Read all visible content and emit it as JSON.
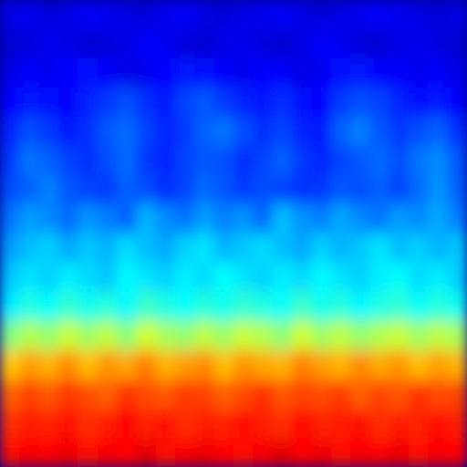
{
  "chart_data": {
    "type": "heatmap",
    "color": "jet",
    "zlim": [
      0,
      1
    ],
    "tick_labels": false,
    "cells": [
      [
        0.1,
        0.11,
        0.09,
        0.1,
        0.12,
        0.11,
        0.1,
        0.09,
        0.11,
        0.12,
        0.1,
        0.09,
        0.1,
        0.11,
        0.12,
        0.1,
        0.09,
        0.1,
        0.11,
        0.12,
        0.11,
        0.1,
        0.09,
        0.1
      ],
      [
        0.08,
        0.09,
        0.11,
        0.1,
        0.08,
        0.09,
        0.1,
        0.12,
        0.11,
        0.09,
        0.08,
        0.1,
        0.11,
        0.09,
        0.08,
        0.1,
        0.12,
        0.11,
        0.09,
        0.08,
        0.1,
        0.11,
        0.09,
        0.08
      ],
      [
        0.1,
        0.12,
        0.11,
        0.13,
        0.14,
        0.12,
        0.1,
        0.11,
        0.13,
        0.15,
        0.14,
        0.12,
        0.11,
        0.13,
        0.12,
        0.1,
        0.11,
        0.14,
        0.15,
        0.13,
        0.12,
        0.11,
        0.12,
        0.1
      ],
      [
        0.13,
        0.15,
        0.14,
        0.12,
        0.16,
        0.18,
        0.2,
        0.17,
        0.15,
        0.19,
        0.21,
        0.18,
        0.16,
        0.15,
        0.17,
        0.14,
        0.13,
        0.18,
        0.2,
        0.19,
        0.16,
        0.14,
        0.15,
        0.13
      ],
      [
        0.16,
        0.2,
        0.18,
        0.15,
        0.17,
        0.21,
        0.23,
        0.19,
        0.16,
        0.18,
        0.22,
        0.24,
        0.2,
        0.17,
        0.19,
        0.16,
        0.15,
        0.22,
        0.25,
        0.21,
        0.18,
        0.2,
        0.22,
        0.17
      ],
      [
        0.18,
        0.24,
        0.22,
        0.19,
        0.17,
        0.2,
        0.23,
        0.18,
        0.16,
        0.19,
        0.21,
        0.2,
        0.17,
        0.19,
        0.22,
        0.18,
        0.16,
        0.19,
        0.21,
        0.23,
        0.2,
        0.24,
        0.26,
        0.21
      ],
      [
        0.2,
        0.22,
        0.25,
        0.21,
        0.19,
        0.18,
        0.22,
        0.2,
        0.17,
        0.19,
        0.23,
        0.21,
        0.18,
        0.2,
        0.19,
        0.17,
        0.18,
        0.21,
        0.2,
        0.22,
        0.19,
        0.23,
        0.27,
        0.22
      ],
      [
        0.24,
        0.28,
        0.26,
        0.23,
        0.27,
        0.25,
        0.22,
        0.3,
        0.26,
        0.24,
        0.28,
        0.25,
        0.27,
        0.23,
        0.31,
        0.27,
        0.25,
        0.29,
        0.26,
        0.24,
        0.28,
        0.26,
        0.29,
        0.25
      ],
      [
        0.28,
        0.31,
        0.33,
        0.29,
        0.32,
        0.3,
        0.34,
        0.31,
        0.29,
        0.33,
        0.35,
        0.3,
        0.32,
        0.34,
        0.31,
        0.29,
        0.33,
        0.3,
        0.32,
        0.35,
        0.31,
        0.33,
        0.3,
        0.32
      ],
      [
        0.32,
        0.35,
        0.33,
        0.36,
        0.34,
        0.32,
        0.37,
        0.35,
        0.33,
        0.36,
        0.34,
        0.38,
        0.35,
        0.33,
        0.36,
        0.34,
        0.37,
        0.35,
        0.33,
        0.36,
        0.38,
        0.34,
        0.36,
        0.33
      ],
      [
        0.36,
        0.4,
        0.38,
        0.42,
        0.39,
        0.41,
        0.37,
        0.43,
        0.4,
        0.38,
        0.41,
        0.39,
        0.42,
        0.4,
        0.38,
        0.43,
        0.39,
        0.41,
        0.37,
        0.4,
        0.42,
        0.38,
        0.41,
        0.39
      ],
      [
        0.5,
        0.55,
        0.52,
        0.57,
        0.53,
        0.56,
        0.51,
        0.58,
        0.54,
        0.52,
        0.56,
        0.53,
        0.57,
        0.55,
        0.51,
        0.58,
        0.53,
        0.56,
        0.52,
        0.55,
        0.57,
        0.53,
        0.56,
        0.54
      ],
      [
        0.68,
        0.72,
        0.7,
        0.74,
        0.69,
        0.73,
        0.71,
        0.75,
        0.7,
        0.72,
        0.74,
        0.69,
        0.73,
        0.71,
        0.7,
        0.75,
        0.72,
        0.7,
        0.74,
        0.71,
        0.73,
        0.69,
        0.72,
        0.7
      ],
      [
        0.78,
        0.81,
        0.79,
        0.82,
        0.8,
        0.78,
        0.83,
        0.8,
        0.79,
        0.82,
        0.81,
        0.78,
        0.8,
        0.83,
        0.79,
        0.81,
        0.8,
        0.82,
        0.78,
        0.81,
        0.79,
        0.83,
        0.8,
        0.81
      ],
      [
        0.83,
        0.85,
        0.84,
        0.86,
        0.83,
        0.85,
        0.87,
        0.84,
        0.86,
        0.83,
        0.85,
        0.84,
        0.86,
        0.85,
        0.83,
        0.87,
        0.84,
        0.85,
        0.86,
        0.83,
        0.85,
        0.84,
        0.86,
        0.85
      ],
      [
        0.86,
        0.88,
        0.87,
        0.89,
        0.86,
        0.88,
        0.87,
        0.9,
        0.86,
        0.88,
        0.89,
        0.87,
        0.86,
        0.88,
        0.9,
        0.87,
        0.89,
        0.86,
        0.88,
        0.87,
        0.89,
        0.86,
        0.88,
        0.87
      ]
    ]
  }
}
